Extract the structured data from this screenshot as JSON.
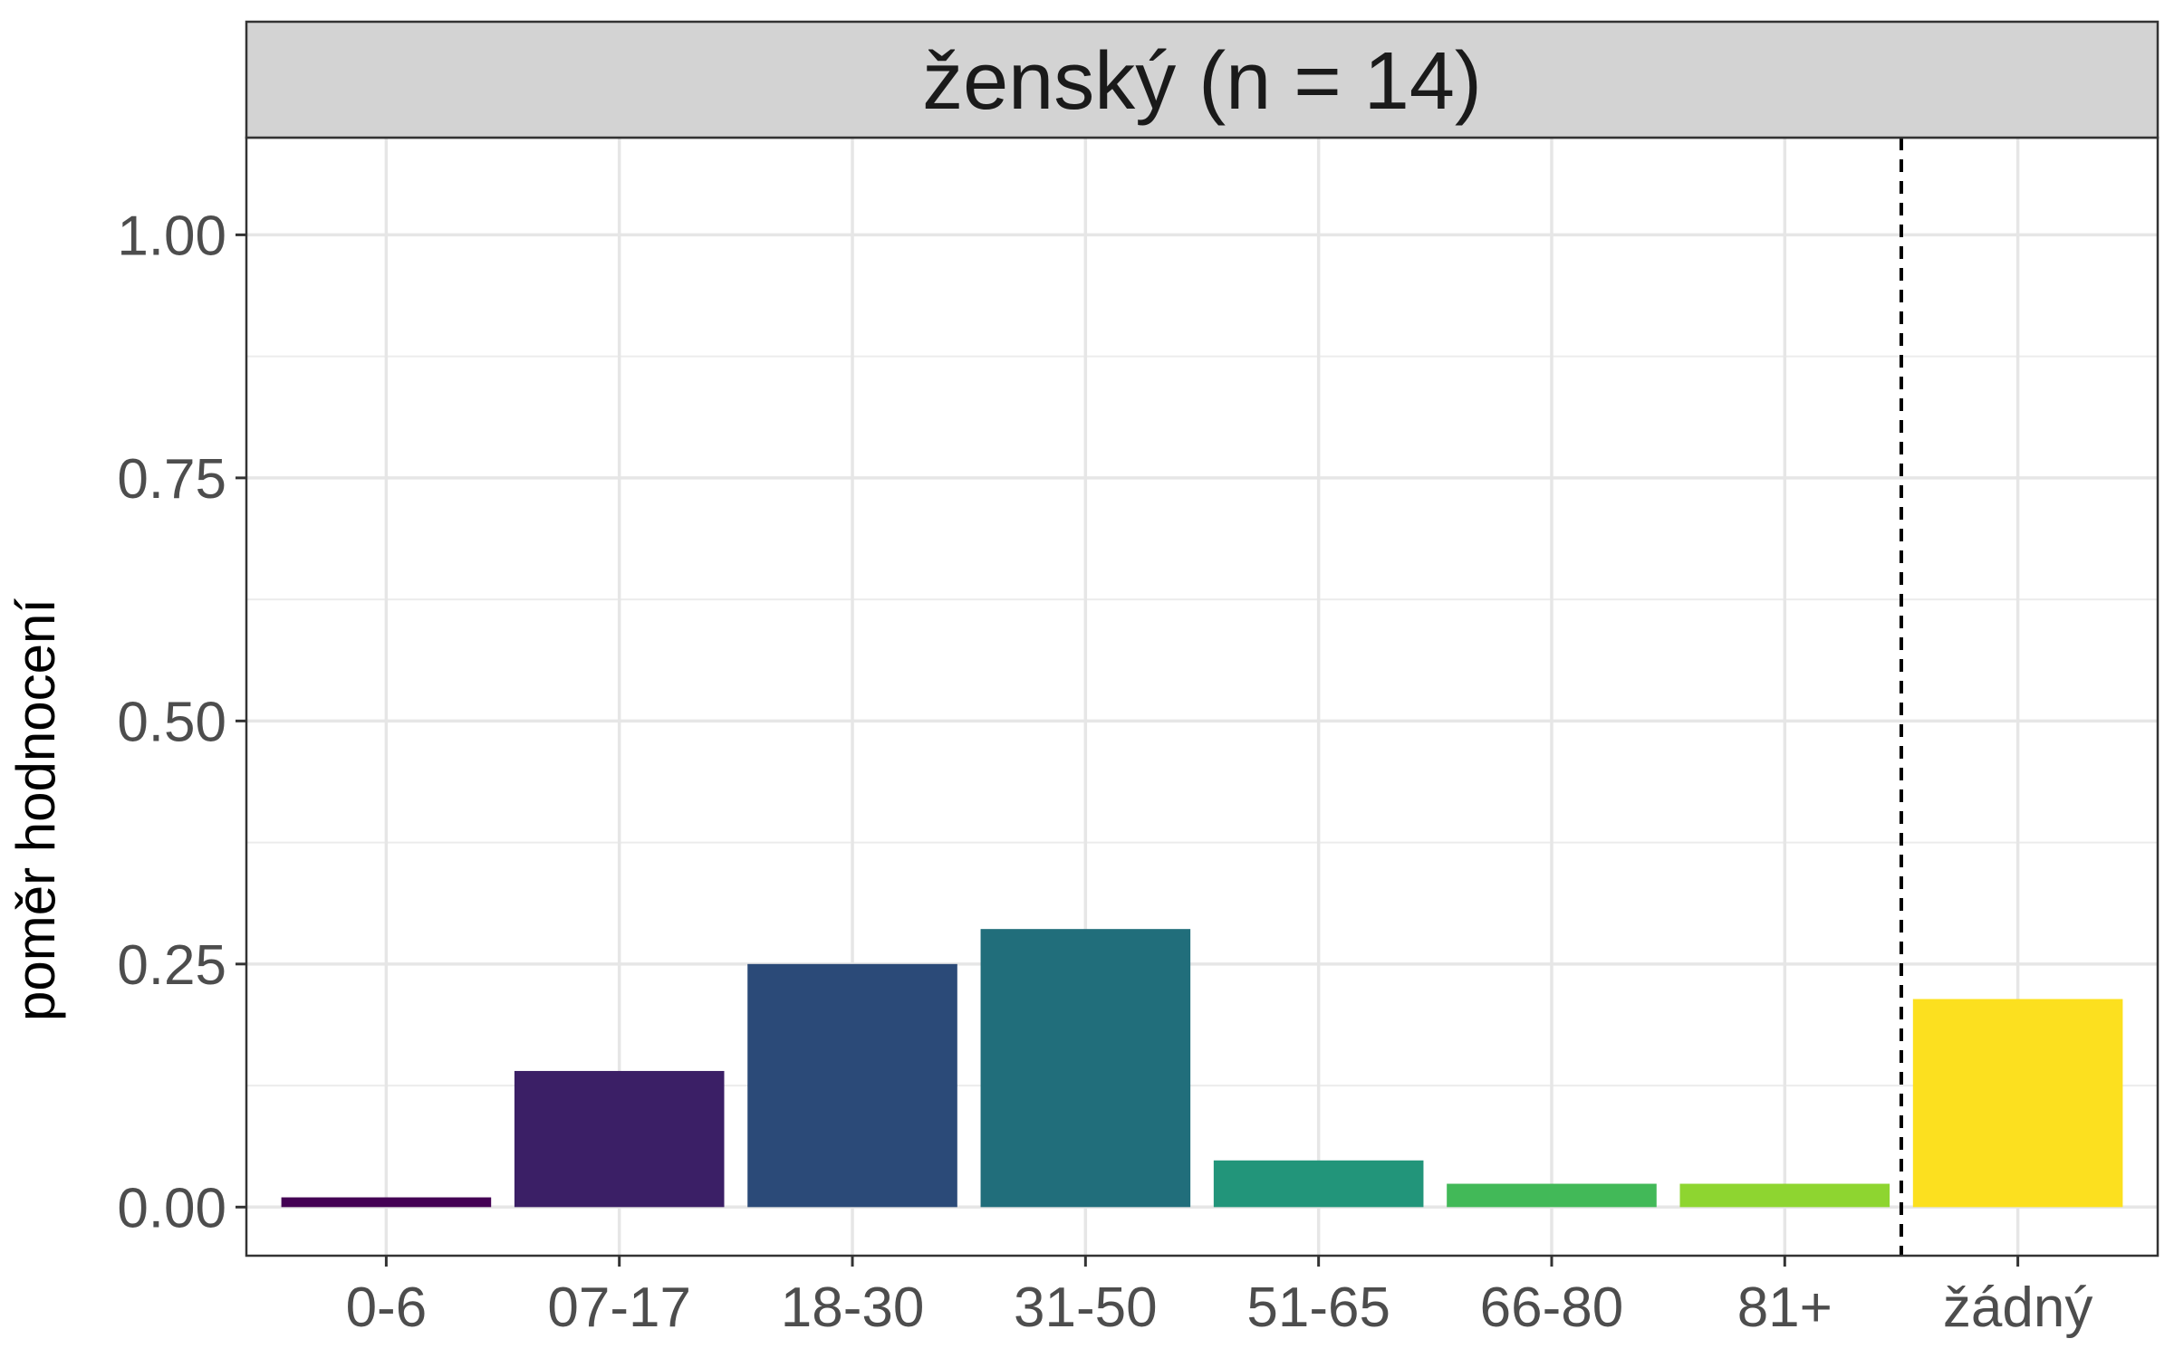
{
  "chart_data": {
    "type": "bar",
    "facet_title": "ženský (n = 14)",
    "ylabel": "poměr hodnocení",
    "xlabel": "",
    "categories": [
      "0-6",
      "07-17",
      "18-30",
      "31-50",
      "51-65",
      "66-80",
      "81+",
      "žádný"
    ],
    "values": [
      0.01,
      0.14,
      0.25,
      0.286,
      0.048,
      0.024,
      0.024,
      0.214
    ],
    "colors": [
      "#440154",
      "#3b1f66",
      "#2b4a78",
      "#216e7b",
      "#22957a",
      "#42b958",
      "#8ed530",
      "#fce01f"
    ],
    "ylim": [
      -0.05,
      1.1
    ],
    "yticks": [
      "0.00",
      "0.25",
      "0.50",
      "0.75",
      "1.00"
    ],
    "ytick_values": [
      0,
      0.25,
      0.5,
      0.75,
      1.0
    ],
    "grid": true,
    "reference_line": {
      "style": "dashed",
      "between": [
        "81+",
        "žádný"
      ]
    },
    "strip_color": "#d3d3d3"
  }
}
